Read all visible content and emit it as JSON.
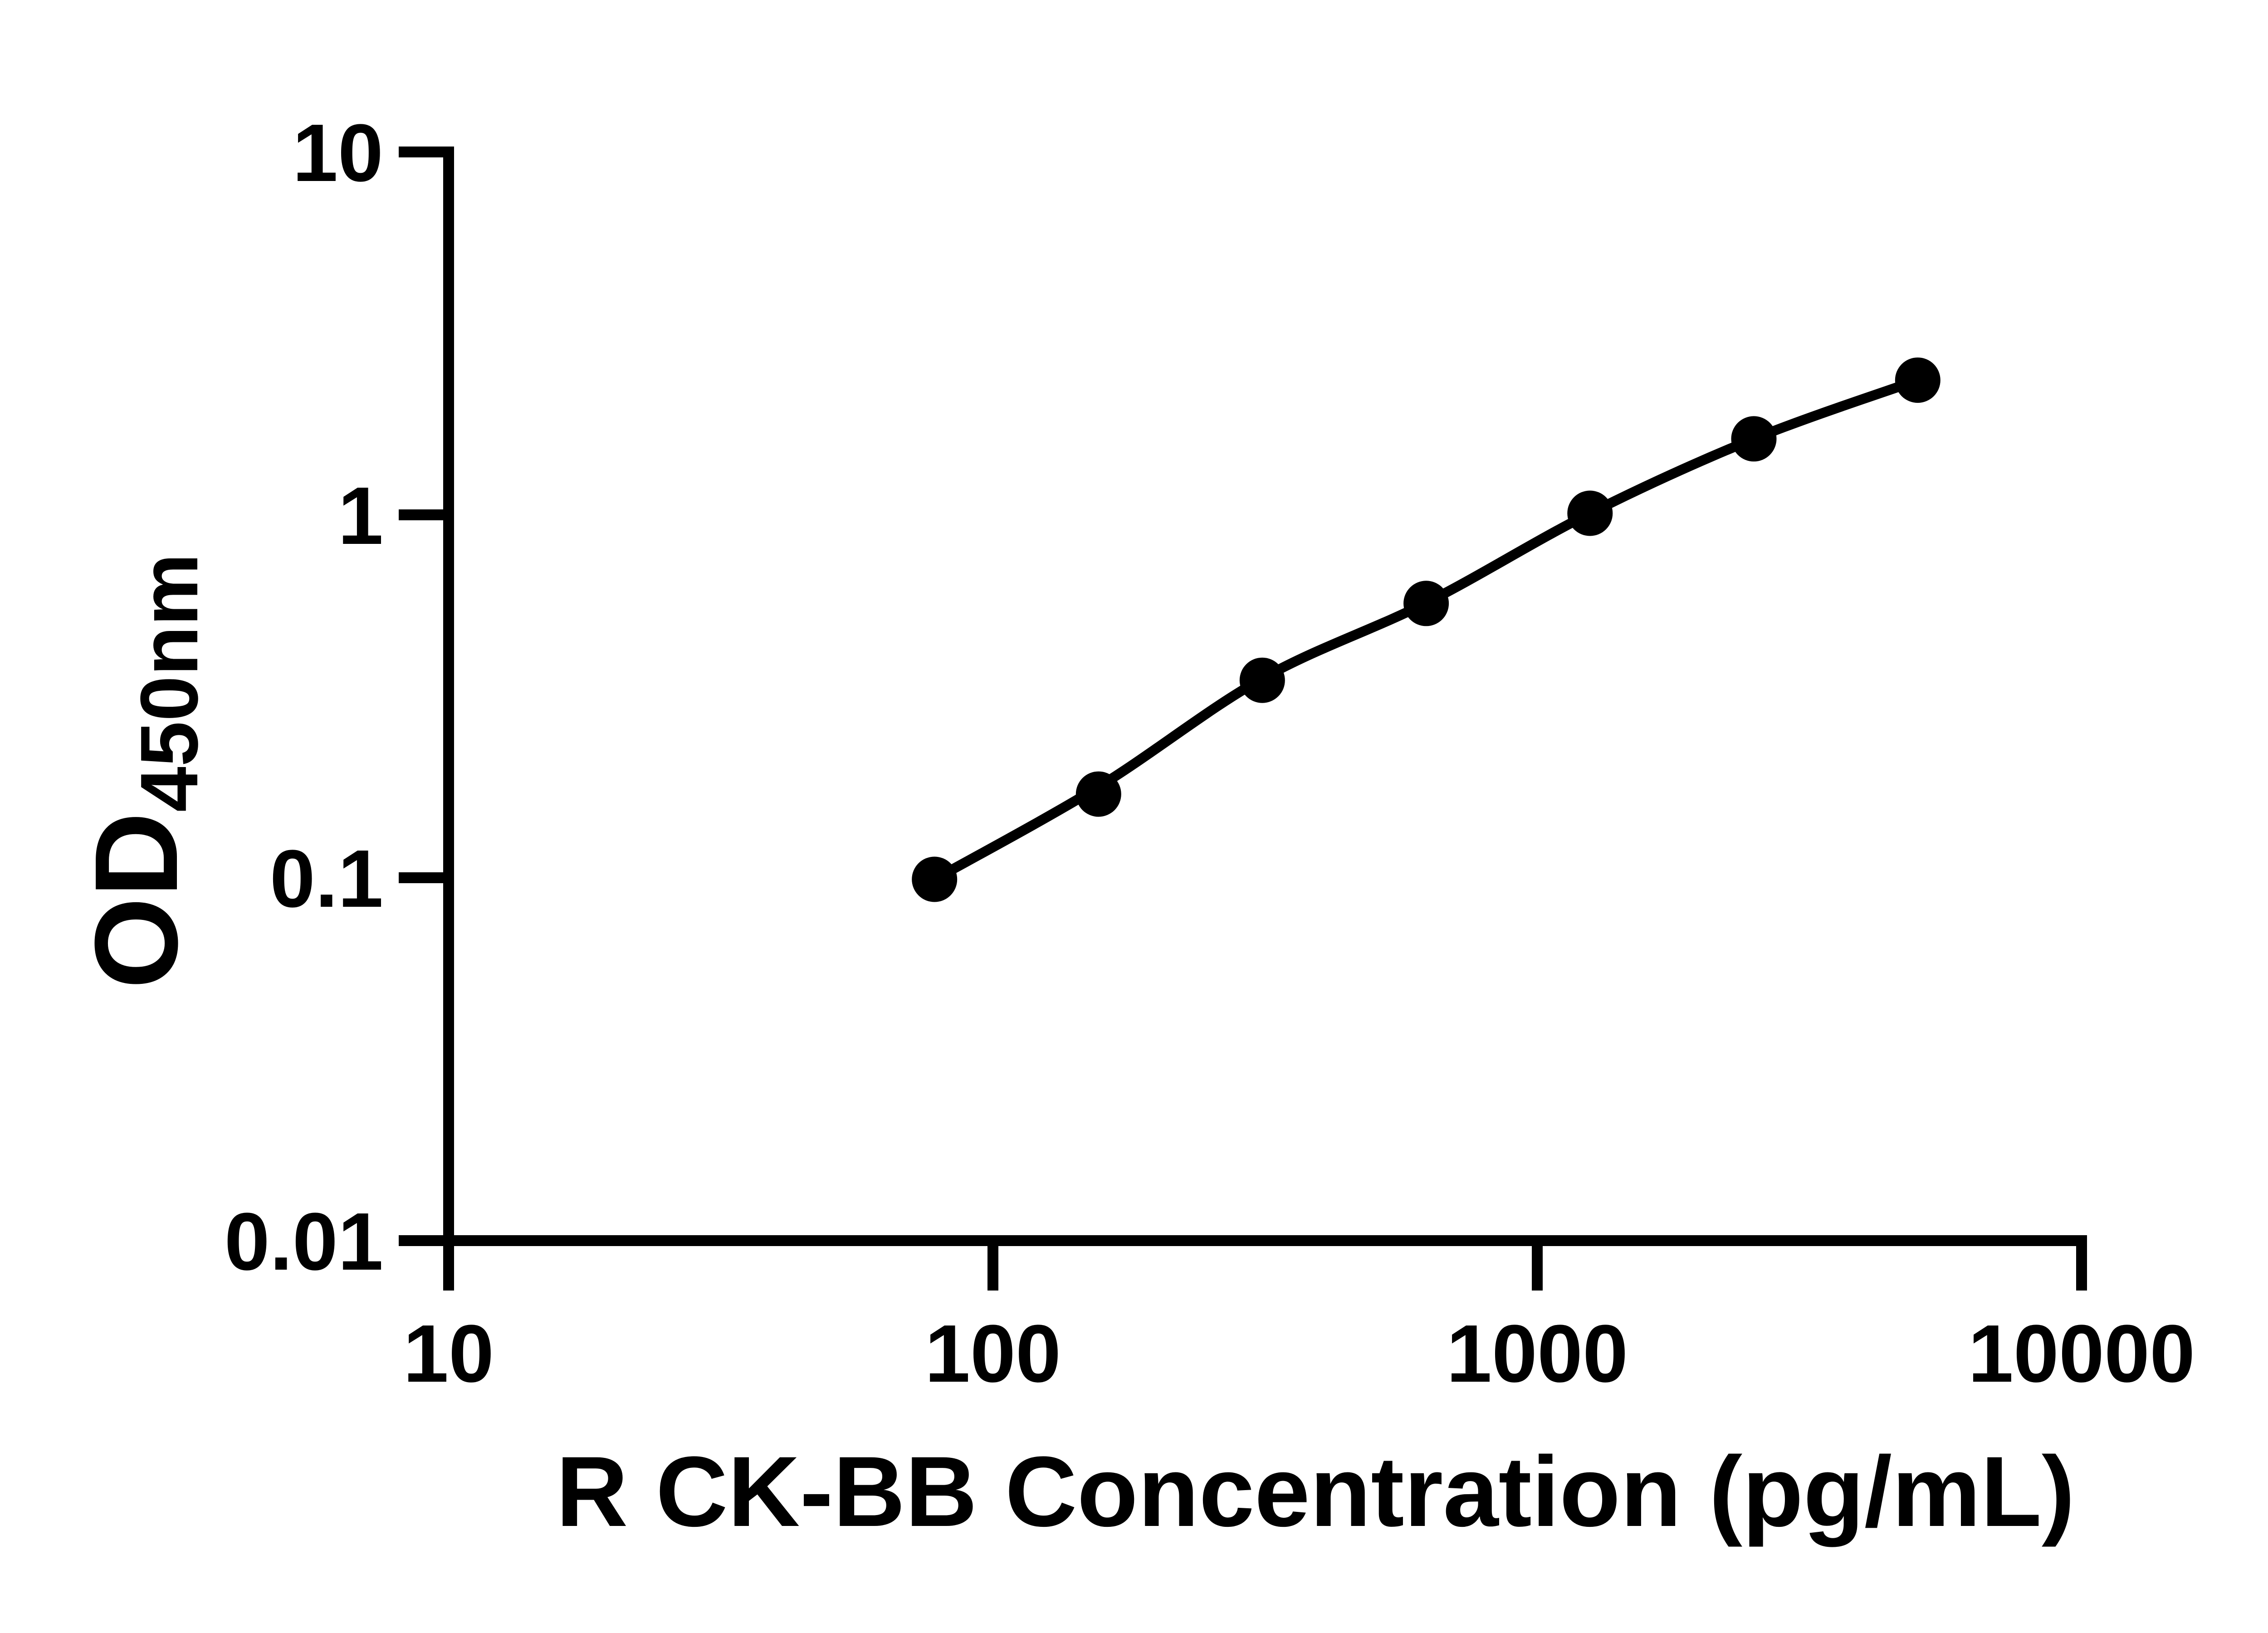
{
  "figure": {
    "background_color": "#ffffff",
    "ink_color": "#000000"
  },
  "chart_data": {
    "type": "scatter",
    "title": "",
    "xlabel": "R CK-BB Concentration (pg/mL)",
    "ylabel_main": "OD",
    "ylabel_sub": "450nm",
    "x_scale": "log10",
    "y_scale": "log10",
    "xlim": [
      10,
      10000
    ],
    "ylim": [
      0.01,
      10
    ],
    "grid": false,
    "legend_position": "none",
    "x_ticks": [
      {
        "v": 10,
        "label": "10"
      },
      {
        "v": 100,
        "label": "100"
      },
      {
        "v": 1000,
        "label": "1000"
      },
      {
        "v": 10000,
        "label": "10000"
      }
    ],
    "y_ticks": [
      {
        "v": 10,
        "label": "10"
      },
      {
        "v": 1,
        "label": "1"
      },
      {
        "v": 0.1,
        "label": "0.1"
      },
      {
        "v": 0.01,
        "label": "0.01"
      }
    ],
    "series": [
      {
        "marker": "filled-circle",
        "color": "#000000",
        "x": [
          78.1,
          156.3,
          312.5,
          625,
          1250,
          2500,
          5000
        ],
        "y": [
          0.099,
          0.17,
          0.35,
          0.57,
          1.01,
          1.62,
          2.35
        ]
      }
    ],
    "fit_curve": {
      "style": "smooth-line",
      "color": "#000000",
      "x": [
        78.1,
        156.3,
        312.5,
        625,
        1250,
        2500,
        5000
      ],
      "y": [
        0.099,
        0.178,
        0.354,
        0.572,
        1.01,
        1.62,
        2.35
      ]
    }
  }
}
